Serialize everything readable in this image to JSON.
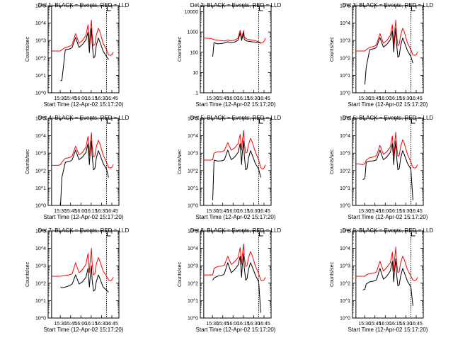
{
  "figure": {
    "colors": {
      "events": "#000000",
      "lld": "#ff0000",
      "axes": "#000000",
      "background": "#ffffff"
    }
  },
  "chart_data": [
    {
      "type": "line",
      "title": "Det 1: BLACK = Events, RED = LLD",
      "xlabel": "Start Time (12-Apr-02 15:17:20)",
      "ylabel": "Counts/sec",
      "yscale": "log",
      "ylim": [
        1,
        100000
      ],
      "xticks": [
        "15:30",
        "15:45",
        "16:00",
        "16:15",
        "16:30",
        "16:45"
      ],
      "yticks": [
        "10^0",
        "10^1",
        "10^2",
        "10^3",
        "10^4",
        "10^5"
      ],
      "ytick_values": [
        1,
        10,
        100,
        1000,
        10000,
        100000
      ],
      "x_minutes": [
        0,
        10,
        13,
        15,
        20,
        25,
        28,
        30,
        35,
        40,
        45,
        50,
        53,
        55,
        56,
        58,
        59,
        61,
        63,
        65,
        68,
        70,
        75,
        80,
        83,
        86,
        88,
        90
      ],
      "series": [
        {
          "name": "Events",
          "values": [
            null,
            null,
            5,
            5,
            300,
            320,
            350,
            400,
            1500,
            400,
            600,
            1100,
            3000,
            200,
            900,
            5000,
            800,
            100,
            120,
            500,
            1400,
            900,
            250,
            120,
            80,
            null,
            null,
            null
          ]
        },
        {
          "name": "LLD",
          "values": [
            250,
            250,
            250,
            300,
            400,
            450,
            500,
            600,
            2500,
            700,
            1000,
            2000,
            8000,
            600,
            2500,
            15000,
            2500,
            500,
            600,
            2000,
            5000,
            3500,
            700,
            300,
            150,
            140,
            160,
            220
          ]
        }
      ]
    },
    {
      "type": "line",
      "title": "Det 2: BLACK = Events, RED = LLD",
      "xlabel": "Start Time (12-Apr-02 15:17:20)",
      "ylabel": "Counts/sec",
      "yscale": "log",
      "ylim": [
        1,
        20000
      ],
      "xticks": [
        "15:30",
        "15:45",
        "16:00",
        "16:15",
        "16:30",
        "16:45"
      ],
      "yticks": [
        "1",
        "10",
        "100",
        "1000",
        "10000"
      ],
      "ytick_values": [
        1,
        10,
        100,
        1000,
        10000
      ],
      "x_minutes": [
        0,
        10,
        13,
        15,
        20,
        25,
        28,
        30,
        35,
        40,
        45,
        50,
        53,
        55,
        56,
        58,
        59,
        61,
        63,
        65,
        68,
        70,
        75,
        80,
        83,
        86,
        88,
        90
      ],
      "series": [
        {
          "name": "Events",
          "values": [
            null,
            null,
            60,
            300,
            260,
            270,
            280,
            290,
            330,
            300,
            320,
            400,
            900,
            380,
            500,
            900,
            450,
            380,
            360,
            350,
            340,
            330,
            320,
            300,
            280,
            null,
            null,
            null
          ]
        },
        {
          "name": "LLD",
          "values": [
            500,
            480,
            450,
            420,
            400,
            380,
            370,
            360,
            400,
            370,
            400,
            500,
            1200,
            500,
            650,
            1200,
            600,
            480,
            450,
            430,
            420,
            400,
            380,
            330,
            280,
            300,
            360,
            500
          ]
        }
      ]
    },
    {
      "type": "line",
      "title": "Det 3: BLACK = Events, RED = LLD",
      "xlabel": "Start Time (12-Apr-02 15:17:20)",
      "ylabel": "Counts/sec",
      "yscale": "log",
      "ylim": [
        1,
        100000
      ],
      "xticks": [
        "15:30",
        "15:45",
        "16:00",
        "16:15",
        "16:30",
        "16:45"
      ],
      "yticks": [
        "10^0",
        "10^1",
        "10^2",
        "10^3",
        "10^4",
        "10^5"
      ],
      "ytick_values": [
        1,
        10,
        100,
        1000,
        10000,
        100000
      ],
      "x_minutes": [
        0,
        10,
        13,
        15,
        20,
        25,
        28,
        30,
        35,
        40,
        45,
        50,
        53,
        55,
        56,
        58,
        59,
        61,
        63,
        65,
        68,
        70,
        75,
        80,
        83,
        86,
        88,
        90
      ],
      "series": [
        {
          "name": "Events",
          "values": [
            null,
            null,
            3,
            30,
            300,
            330,
            360,
            420,
            1500,
            420,
            600,
            1100,
            3500,
            220,
            900,
            5000,
            800,
            110,
            130,
            500,
            1400,
            900,
            260,
            120,
            50,
            null,
            null,
            null
          ]
        },
        {
          "name": "LLD",
          "values": [
            250,
            250,
            250,
            300,
            400,
            450,
            500,
            600,
            2500,
            700,
            1000,
            2000,
            8000,
            600,
            2500,
            15000,
            2500,
            500,
            600,
            2000,
            5000,
            3500,
            700,
            300,
            150,
            140,
            160,
            220
          ]
        }
      ]
    },
    {
      "type": "line",
      "title": "Det 4: BLACK = Events, RED = LLD",
      "xlabel": "Start Time (12-Apr-02 15:17:20)",
      "ylabel": "Counts/sec",
      "yscale": "log",
      "ylim": [
        1,
        100000
      ],
      "xticks": [
        "15:30",
        "15:45",
        "16:00",
        "16:15",
        "16:30",
        "16:45"
      ],
      "yticks": [
        "10^0",
        "10^1",
        "10^2",
        "10^3",
        "10^4",
        "10^5"
      ],
      "ytick_values": [
        1,
        10,
        100,
        1000,
        10000,
        100000
      ],
      "x_minutes": [
        0,
        10,
        13,
        15,
        20,
        25,
        28,
        30,
        35,
        40,
        45,
        50,
        53,
        55,
        56,
        58,
        59,
        61,
        63,
        65,
        68,
        70,
        75,
        80,
        83,
        86,
        88,
        90
      ],
      "series": [
        {
          "name": "Events",
          "values": [
            null,
            null,
            1,
            40,
            300,
            330,
            360,
            420,
            1500,
            420,
            600,
            1100,
            3500,
            220,
            900,
            5000,
            800,
            110,
            130,
            500,
            1400,
            900,
            260,
            120,
            40,
            null,
            null,
            null
          ]
        },
        {
          "name": "LLD",
          "values": [
            200,
            200,
            220,
            300,
            500,
            550,
            600,
            700,
            2500,
            800,
            1100,
            2200,
            9000,
            700,
            2800,
            15000,
            2800,
            600,
            700,
            2200,
            5500,
            3800,
            800,
            300,
            150,
            140,
            160,
            220
          ]
        }
      ]
    },
    {
      "type": "line",
      "title": "Det 5: BLACK = Events, RED = LLD",
      "xlabel": "Start Time (12-Apr-02 15:17:20)",
      "ylabel": "Counts/sec",
      "yscale": "log",
      "ylim": [
        1,
        100000
      ],
      "xticks": [
        "15:30",
        "15:45",
        "16:00",
        "16:15",
        "16:30",
        "16:45"
      ],
      "yticks": [
        "10^0",
        "10^1",
        "10^2",
        "10^3",
        "10^4",
        "10^5"
      ],
      "ytick_values": [
        1,
        10,
        100,
        1000,
        10000,
        100000
      ],
      "x_minutes": [
        0,
        10,
        13,
        15,
        20,
        25,
        28,
        30,
        35,
        40,
        45,
        50,
        53,
        55,
        56,
        58,
        59,
        61,
        63,
        65,
        68,
        70,
        75,
        80,
        83,
        86,
        88,
        90
      ],
      "series": [
        {
          "name": "Events",
          "values": [
            null,
            null,
            2,
            400,
            350,
            360,
            380,
            420,
            1500,
            420,
            600,
            1100,
            3500,
            220,
            900,
            5000,
            800,
            110,
            130,
            500,
            1400,
            900,
            260,
            120,
            40,
            null,
            null,
            null
          ]
        },
        {
          "name": "LLD",
          "values": [
            400,
            400,
            420,
            1000,
            1200,
            1200,
            1300,
            1400,
            4000,
            1500,
            2000,
            3500,
            12000,
            1500,
            4000,
            20000,
            4000,
            1000,
            1100,
            3000,
            7000,
            5000,
            1200,
            400,
            150,
            120,
            150,
            220
          ]
        }
      ]
    },
    {
      "type": "line",
      "title": "Det 6: BLACK = Events, RED = LLD",
      "xlabel": "Start Time (12-Apr-02 15:17:20)",
      "ylabel": "Counts/sec",
      "yscale": "log",
      "ylim": [
        1,
        100000
      ],
      "xticks": [
        "15:30",
        "15:45",
        "16:00",
        "16:15",
        "16:30",
        "16:45"
      ],
      "yticks": [
        "10^0",
        "10^1",
        "10^2",
        "10^3",
        "10^4",
        "10^5"
      ],
      "ytick_values": [
        1,
        10,
        100,
        1000,
        10000,
        100000
      ],
      "x_minutes": [
        0,
        10,
        13,
        15,
        20,
        25,
        28,
        30,
        35,
        40,
        45,
        50,
        53,
        55,
        56,
        58,
        59,
        61,
        63,
        65,
        68,
        70,
        75,
        80,
        83,
        86,
        88,
        90
      ],
      "series": [
        {
          "name": "Events",
          "values": [
            null,
            30,
            35,
            300,
            350,
            360,
            380,
            420,
            1500,
            420,
            600,
            1100,
            3500,
            220,
            900,
            5000,
            800,
            110,
            130,
            500,
            1400,
            900,
            260,
            120,
            2,
            null,
            null,
            null
          ]
        },
        {
          "name": "LLD",
          "values": [
            250,
            220,
            250,
            400,
            550,
            600,
            650,
            750,
            2800,
            850,
            1200,
            2300,
            9500,
            750,
            3000,
            16000,
            3000,
            650,
            750,
            2300,
            5800,
            4000,
            850,
            300,
            150,
            140,
            160,
            220
          ]
        }
      ]
    },
    {
      "type": "line",
      "title": "Det 7: BLACK = Events, RED = LLD",
      "xlabel": "Start Time (12-Apr-02 15:17:20)",
      "ylabel": "Counts/sec",
      "yscale": "log",
      "ylim": [
        1,
        100000
      ],
      "xticks": [
        "15:30",
        "15:45",
        "16:00",
        "16:15",
        "16:30",
        "16:45"
      ],
      "yticks": [
        "10^0",
        "10^1",
        "10^2",
        "10^3",
        "10^4",
        "10^5"
      ],
      "ytick_values": [
        1,
        10,
        100,
        1000,
        10000,
        100000
      ],
      "x_minutes": [
        0,
        10,
        13,
        15,
        20,
        25,
        28,
        30,
        35,
        40,
        45,
        50,
        53,
        55,
        56,
        58,
        59,
        61,
        63,
        65,
        68,
        70,
        75,
        80,
        83,
        86,
        88,
        90
      ],
      "series": [
        {
          "name": "Events",
          "values": [
            null,
            null,
            60,
            55,
            60,
            70,
            80,
            90,
            300,
            90,
            120,
            220,
            700,
            60,
            180,
            1000,
            170,
            35,
            40,
            120,
            300,
            200,
            60,
            40,
            30,
            null,
            null,
            null
          ]
        },
        {
          "name": "LLD",
          "values": [
            250,
            250,
            250,
            260,
            280,
            300,
            320,
            350,
            1500,
            400,
            600,
            1200,
            5000,
            400,
            1500,
            10000,
            1500,
            300,
            350,
            1200,
            3000,
            2000,
            500,
            250,
            150,
            140,
            160,
            220
          ]
        }
      ]
    },
    {
      "type": "line",
      "title": "Det 8: BLACK = Events, RED = LLD",
      "xlabel": "Start Time (12-Apr-02 15:17:20)",
      "ylabel": "Counts/sec",
      "yscale": "log",
      "ylim": [
        1,
        100000
      ],
      "xticks": [
        "15:30",
        "15:45",
        "16:00",
        "16:15",
        "16:30",
        "16:45"
      ],
      "yticks": [
        "10^0",
        "10^1",
        "10^2",
        "10^3",
        "10^4",
        "10^5"
      ],
      "ytick_values": [
        1,
        10,
        100,
        1000,
        10000,
        100000
      ],
      "x_minutes": [
        0,
        10,
        13,
        15,
        20,
        25,
        28,
        30,
        35,
        40,
        45,
        50,
        53,
        55,
        56,
        58,
        59,
        61,
        63,
        65,
        68,
        70,
        75,
        80,
        83,
        86,
        88,
        90
      ],
      "series": [
        {
          "name": "Events",
          "values": [
            null,
            null,
            150,
            200,
            250,
            280,
            300,
            350,
            1500,
            400,
            600,
            1100,
            3500,
            220,
            900,
            5000,
            800,
            150,
            180,
            600,
            1500,
            1000,
            300,
            120,
            2,
            null,
            null,
            null
          ]
        },
        {
          "name": "LLD",
          "values": [
            300,
            300,
            300,
            700,
            900,
            950,
            1000,
            1100,
            3500,
            1200,
            1700,
            3000,
            11000,
            1200,
            3500,
            18000,
            3500,
            900,
            1000,
            2800,
            6500,
            4500,
            1000,
            350,
            150,
            140,
            160,
            220
          ]
        }
      ]
    },
    {
      "type": "line",
      "title": "Det 9: BLACK = Events, RED = LLD",
      "xlabel": "Start Time (12-Apr-02 15:17:20)",
      "ylabel": "Counts/sec",
      "yscale": "log",
      "ylim": [
        1,
        100000
      ],
      "xticks": [
        "15:30",
        "15:45",
        "16:00",
        "16:15",
        "16:30",
        "16:45"
      ],
      "yticks": [
        "10^0",
        "10^1",
        "10^2",
        "10^3",
        "10^4",
        "10^5"
      ],
      "ytick_values": [
        1,
        10,
        100,
        1000,
        10000,
        100000
      ],
      "x_minutes": [
        0,
        10,
        13,
        15,
        20,
        25,
        28,
        30,
        35,
        40,
        45,
        50,
        53,
        55,
        56,
        58,
        59,
        61,
        63,
        65,
        68,
        70,
        75,
        80,
        83,
        86,
        88,
        90
      ],
      "series": [
        {
          "name": "Events",
          "values": [
            null,
            40,
            45,
            90,
            120,
            130,
            140,
            160,
            700,
            170,
            250,
            500,
            1800,
            120,
            450,
            2500,
            400,
            70,
            80,
            250,
            700,
            450,
            130,
            60,
            5,
            null,
            null,
            null
          ]
        },
        {
          "name": "LLD",
          "values": [
            250,
            250,
            250,
            300,
            350,
            380,
            400,
            450,
            1800,
            500,
            800,
            1500,
            6000,
            500,
            1800,
            12000,
            1800,
            400,
            450,
            1500,
            3500,
            2500,
            600,
            250,
            150,
            140,
            160,
            220
          ]
        }
      ]
    }
  ]
}
